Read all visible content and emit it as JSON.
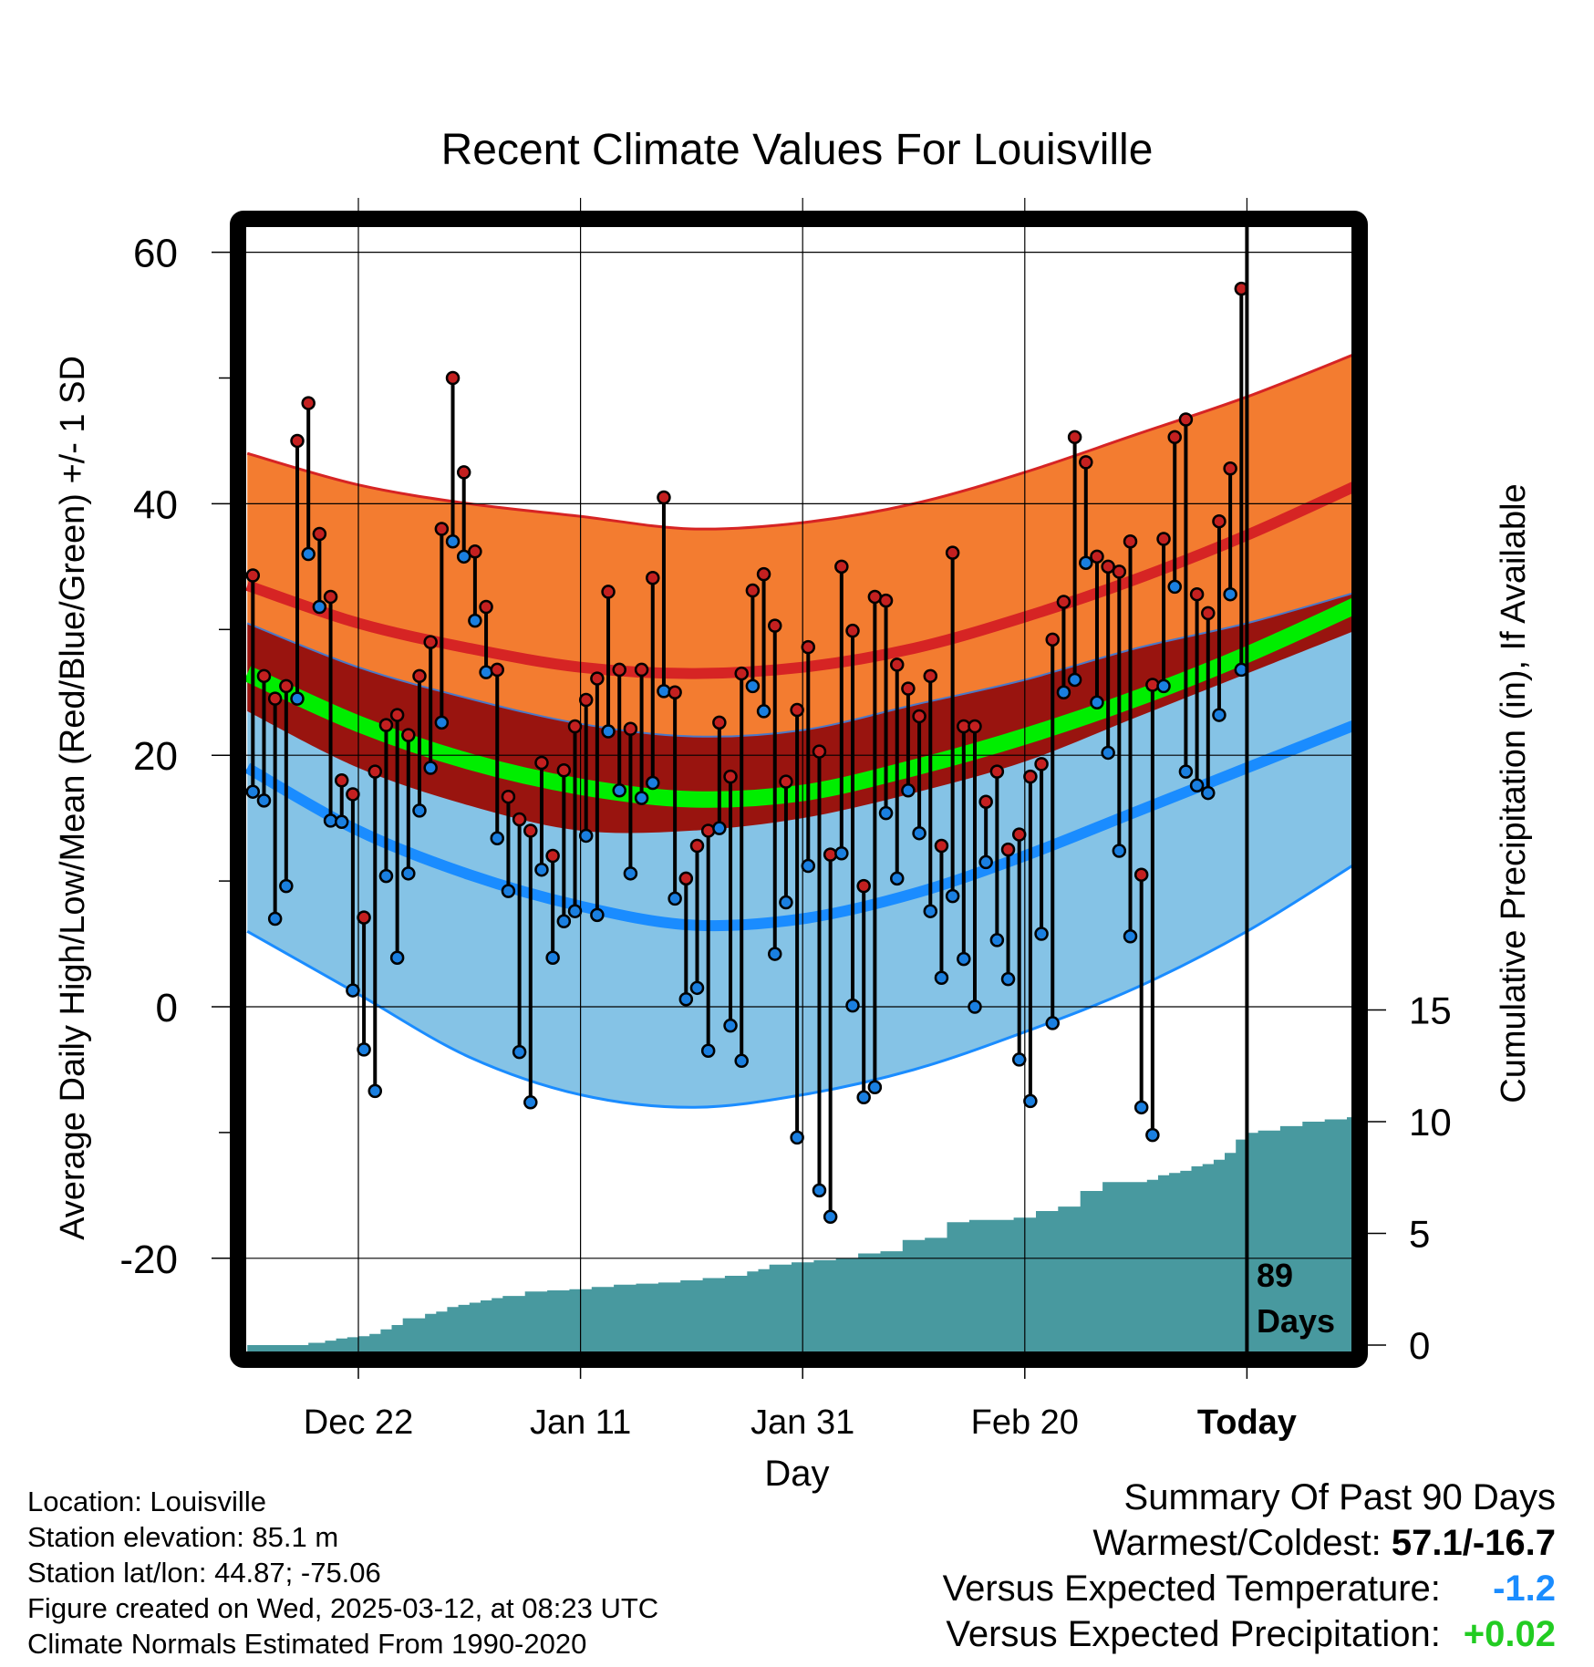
{
  "chart_data": {
    "type": "line",
    "title": "Recent Climate Values For Louisville",
    "xlabel": "Day",
    "ylabel": "Average Daily High/Low/Mean (Red/Blue/Green) +/- 1 SD",
    "y2label": "Cumulative Precipitation (in), If Available",
    "xlim": [
      -10,
      90
    ],
    "ylim": [
      -27,
      63
    ],
    "y2lim": [
      0,
      16
    ],
    "y_ticks": [
      -20,
      0,
      20,
      40,
      60
    ],
    "y_minor_ticks": [
      -10,
      10,
      30,
      50
    ],
    "y2_ticks": [
      0,
      5,
      10,
      15
    ],
    "x_ticks": [
      {
        "x": 0,
        "label": "Dec 22"
      },
      {
        "x": 20,
        "label": "Jan 11"
      },
      {
        "x": 40,
        "label": "Jan 31"
      },
      {
        "x": 60,
        "label": "Feb 20"
      },
      {
        "x": 80,
        "label": "Today"
      }
    ],
    "grid": true,
    "today_marker": {
      "x": 80,
      "label_line1": "89",
      "label_line2": "Days"
    },
    "normals": {
      "x": [
        -10,
        0,
        10,
        20,
        30,
        40,
        50,
        60,
        70,
        80,
        90
      ],
      "high_mean": [
        33.5,
        30.5,
        28.5,
        27.0,
        26.5,
        27.0,
        28.5,
        31.0,
        34.0,
        37.5,
        41.5
      ],
      "high_plus_sd": [
        44.0,
        41.5,
        40.0,
        39.0,
        38.0,
        38.5,
        40.0,
        42.5,
        45.5,
        48.5,
        52.0
      ],
      "low_mean": [
        19.0,
        14.0,
        10.5,
        8.0,
        6.5,
        7.0,
        9.0,
        12.0,
        15.5,
        19.0,
        22.5
      ],
      "low_minus_sd": [
        6.0,
        1.0,
        -4.0,
        -7.0,
        -8.0,
        -7.0,
        -5.0,
        -2.0,
        1.5,
        6.0,
        11.5
      ],
      "mean": [
        26.5,
        22.5,
        19.5,
        17.5,
        16.5,
        17.0,
        19.0,
        21.5,
        24.5,
        28.0,
        32.0
      ],
      "mean_sd_low": [
        23.5,
        19.0,
        16.0,
        14.0,
        14.0,
        15.0,
        17.0,
        19.5,
        23.0,
        26.5,
        30.0
      ],
      "mean_sd_high": [
        30.5,
        27.0,
        24.5,
        22.5,
        21.5,
        22.0,
        24.0,
        26.0,
        28.5,
        30.5,
        33.0
      ]
    },
    "daily": {
      "high": [
        34.3,
        26.3,
        24.5,
        25.5,
        45.0,
        48.0,
        37.6,
        32.6,
        18.0,
        16.9,
        7.1,
        18.7,
        22.4,
        23.2,
        21.6,
        26.3,
        29.0,
        38.0,
        50.0,
        42.5,
        36.2,
        31.8,
        26.8,
        16.7,
        14.9,
        14.0,
        19.4,
        12.0,
        18.8,
        22.3,
        24.4,
        26.1,
        33.0,
        26.8,
        22.1,
        26.8,
        34.1,
        40.5,
        25.0,
        10.2,
        12.8,
        14.0,
        22.6,
        18.3,
        26.5,
        33.1,
        34.4,
        30.3,
        17.9,
        23.6,
        28.6,
        20.3,
        12.1,
        35.0,
        29.9,
        9.6,
        32.6,
        32.3,
        27.2,
        25.3,
        23.1,
        26.3,
        12.8,
        36.1,
        22.3,
        22.3,
        16.3,
        18.7,
        12.5,
        13.7,
        18.3,
        19.3,
        29.2,
        32.2,
        45.3,
        43.3,
        35.8,
        35.0,
        34.6,
        37.0,
        10.5,
        25.6,
        37.2,
        45.3,
        46.7,
        32.8,
        31.3,
        38.6,
        42.8,
        57.1
      ],
      "low": [
        17.1,
        16.4,
        7.0,
        9.6,
        24.5,
        36.0,
        31.8,
        14.8,
        14.7,
        1.3,
        -3.4,
        -6.7,
        10.4,
        3.9,
        10.6,
        15.6,
        19.0,
        22.6,
        37.0,
        35.8,
        30.7,
        26.6,
        13.4,
        9.2,
        -3.6,
        -7.6,
        10.9,
        3.9,
        6.8,
        7.6,
        13.6,
        7.3,
        21.9,
        17.2,
        10.6,
        16.6,
        17.8,
        25.1,
        8.6,
        0.6,
        1.5,
        -3.5,
        14.2,
        -1.5,
        -4.3,
        25.5,
        23.5,
        4.2,
        8.3,
        -10.4,
        11.2,
        -14.6,
        -16.7,
        12.2,
        0.1,
        -7.2,
        -6.4,
        15.4,
        10.2,
        17.2,
        13.8,
        7.6,
        2.3,
        8.8,
        3.8,
        0.0,
        11.5,
        5.3,
        2.2,
        -4.2,
        -7.5,
        5.8,
        -1.3,
        25.0,
        26.0,
        35.3,
        24.2,
        20.2,
        12.4,
        5.6,
        -8.0,
        -10.2,
        25.5,
        33.4,
        18.7,
        17.6,
        17.0,
        23.2,
        32.8,
        26.8
      ]
    },
    "precip_cumulative": {
      "x": [
        -10,
        -5,
        -4.5,
        -3,
        -2,
        -1,
        0,
        1,
        2,
        3,
        4,
        5,
        6,
        7,
        8,
        9,
        10,
        11,
        12,
        13,
        15,
        17,
        19,
        21,
        23,
        25,
        27,
        29,
        31,
        33,
        35,
        36,
        37,
        39,
        41,
        43,
        45,
        47,
        49,
        51,
        53,
        55,
        57,
        59,
        61,
        63,
        65,
        67,
        69,
        71,
        72,
        73,
        74,
        75,
        76,
        77,
        78,
        79,
        80,
        81,
        83,
        85,
        87,
        89,
        90
      ],
      "values": [
        0,
        0,
        0.1,
        0.2,
        0.3,
        0.35,
        0.4,
        0.5,
        0.7,
        0.9,
        1.2,
        1.2,
        1.4,
        1.5,
        1.7,
        1.8,
        1.9,
        2.0,
        2.1,
        2.2,
        2.4,
        2.45,
        2.5,
        2.6,
        2.7,
        2.75,
        2.8,
        2.9,
        3.0,
        3.1,
        3.3,
        3.4,
        3.6,
        3.7,
        3.8,
        3.9,
        4.1,
        4.2,
        4.7,
        4.8,
        5.5,
        5.6,
        5.6,
        5.7,
        6.0,
        6.2,
        6.9,
        7.3,
        7.3,
        7.4,
        7.6,
        7.7,
        7.8,
        8.0,
        8.1,
        8.3,
        8.6,
        9.2,
        9.5,
        9.6,
        9.8,
        10.0,
        10.1,
        10.2,
        10.3
      ]
    },
    "colors": {
      "high_band": "#f37c30",
      "high_line": "#d62424",
      "mean_band": "#99140f",
      "mean_line": "#00ee00",
      "low_band": "#85c3e6",
      "low_line": "#1a8cff",
      "precip": "#48999f",
      "high_dot": "#c42020",
      "low_dot": "#1a7fe0"
    }
  },
  "info": {
    "location": "Location: Louisville",
    "elevation": "Station elevation: 85.1 m",
    "latlon": "Station lat/lon: 44.87; -75.06",
    "created": "Figure created on Wed, 2025-03-12, at 08:23 UTC",
    "normals": "Climate Normals Estimated From 1990-2020"
  },
  "summary": {
    "title": "Summary Of Past 90 Days",
    "warm_cold_label": "Warmest/Coldest:",
    "warm_cold_value": "57.1/-16.7",
    "temp_label": "Versus Expected Temperature:",
    "temp_value": "-1.2",
    "temp_color": "#1a8cff",
    "precip_label": "Versus Expected Precipitation:",
    "precip_value": "+0.02",
    "precip_color": "#22cc22"
  }
}
